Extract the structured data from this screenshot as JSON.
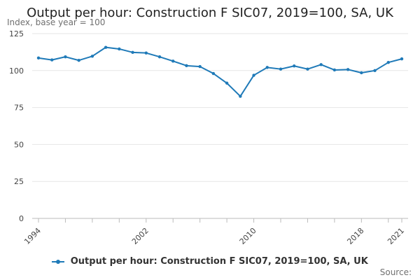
{
  "chart_data": {
    "type": "line",
    "title": "Output per hour: Construction F SIC07, 2019=100, SA, UK",
    "subtitle": "Index, base year = 100",
    "x": [
      1994,
      1995,
      1996,
      1997,
      1998,
      1999,
      2000,
      2001,
      2002,
      2003,
      2004,
      2005,
      2006,
      2007,
      2008,
      2009,
      2010,
      2011,
      2012,
      2013,
      2014,
      2015,
      2016,
      2017,
      2018,
      2019,
      2020,
      2021
    ],
    "series": [
      {
        "name": "Output per hour: Construction F SIC07, 2019=100, SA, UK",
        "color": "#1f7ab8",
        "values": [
          108.5,
          107.2,
          109.3,
          106.9,
          109.7,
          115.7,
          114.6,
          112.3,
          111.9,
          109.3,
          106.4,
          103.3,
          102.7,
          98.0,
          91.5,
          82.6,
          96.8,
          102.1,
          101.0,
          103.1,
          101.0,
          104.0,
          100.4,
          100.7,
          98.5,
          100.0,
          105.5,
          107.9
        ]
      }
    ],
    "x_ticks": [
      "1994",
      "2002",
      "2010",
      "2018",
      "2021"
    ],
    "y_ticks": [
      0,
      25,
      50,
      75,
      100,
      125
    ],
    "ylim": [
      0,
      125
    ],
    "grid": true,
    "legend_position": "bottom",
    "source_label": "Source:"
  }
}
